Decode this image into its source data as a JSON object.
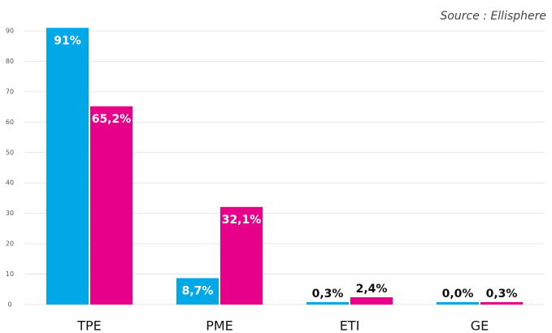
{
  "chart_data": {
    "type": "bar",
    "annotation": "Source : Ellisphere",
    "categories": [
      "TPE",
      "PME",
      "ETI",
      "GE"
    ],
    "series": [
      {
        "color": "#00a8e8",
        "values": [
          91,
          8.7,
          0.3,
          0.0
        ],
        "value_labels": [
          "91%",
          "8,7%",
          "0,3%",
          "0,0%"
        ]
      },
      {
        "color": "#e6008a",
        "values": [
          65.2,
          32.1,
          2.4,
          0.3
        ],
        "value_labels": [
          "65,2%",
          "32,1%",
          "2,4%",
          "0,3%"
        ]
      }
    ],
    "ylim": [
      0,
      91
    ],
    "yticks": [
      0,
      10,
      20,
      30,
      40,
      50,
      60,
      70,
      80,
      90
    ],
    "grid": true
  }
}
